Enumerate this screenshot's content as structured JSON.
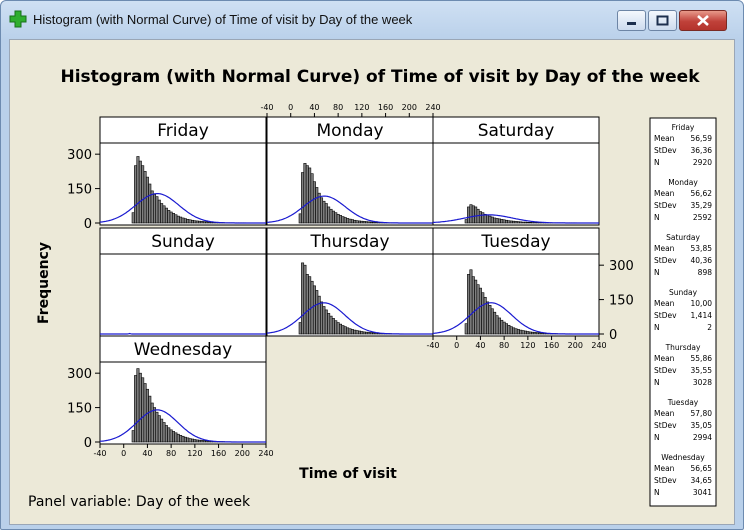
{
  "window": {
    "title": "Histogram (with Normal Curve) of Time of visit by Day of the week",
    "icons": [
      "plus-icon",
      "minimize-icon",
      "maximize-icon",
      "close-icon"
    ]
  },
  "chart_data": {
    "type": "histogram",
    "title": "Histogram (with Normal Curve) of Time of visit by Day of the week",
    "xlabel": "Time of visit",
    "ylabel": "Frequency",
    "panel_variable_label": "Panel variable: Day of the week",
    "x_ticks": [
      -40,
      0,
      40,
      80,
      120,
      160,
      200,
      240
    ],
    "y_ticks": [
      0,
      150,
      300
    ],
    "xlim": [
      -40,
      240
    ],
    "ylim": [
      0,
      340
    ],
    "bin_start": 14,
    "bin_width": 4,
    "panels": [
      {
        "name": "Friday",
        "mean": 56.59,
        "stdev": 36.36,
        "n": 2920,
        "stats_text": {
          "mean": "56,59",
          "stdev": "36,36",
          "n": "2920"
        },
        "counts": [
          45,
          250,
          290,
          270,
          250,
          225,
          200,
          170,
          140,
          125,
          115,
          100,
          85,
          75,
          65,
          55,
          48,
          42,
          36,
          30,
          26,
          22,
          19,
          16,
          14,
          12,
          10,
          9,
          8,
          7,
          6,
          5,
          4,
          4,
          3,
          3,
          2,
          2,
          2,
          1,
          1,
          1,
          1,
          1,
          1,
          1,
          1,
          1
        ]
      },
      {
        "name": "Monday",
        "mean": 56.62,
        "stdev": 35.29,
        "n": 2592,
        "stats_text": {
          "mean": "56,62",
          "stdev": "35,29",
          "n": "2592"
        },
        "counts": [
          40,
          220,
          260,
          250,
          240,
          215,
          180,
          155,
          130,
          110,
          95,
          85,
          70,
          60,
          52,
          45,
          38,
          33,
          28,
          24,
          20,
          17,
          15,
          12,
          10,
          9,
          8,
          7,
          6,
          5,
          4,
          4,
          3,
          3,
          2,
          2,
          2,
          1,
          1,
          1,
          1,
          1
        ]
      },
      {
        "name": "Saturday",
        "mean": 53.85,
        "stdev": 40.36,
        "n": 898,
        "stats_text": {
          "mean": "53,85",
          "stdev": "40,36",
          "n": "898"
        },
        "counts": [
          15,
          70,
          80,
          75,
          70,
          60,
          50,
          45,
          38,
          34,
          30,
          26,
          22,
          20,
          18,
          16,
          14,
          12,
          10,
          9,
          8,
          7,
          6,
          5,
          4,
          4,
          3,
          3,
          2,
          2,
          2,
          2,
          1,
          1,
          1,
          1,
          1,
          1,
          1,
          1,
          1,
          1,
          1,
          1,
          1,
          1,
          1
        ]
      },
      {
        "name": "Sunday",
        "mean": 10.0,
        "stdev": 1.414,
        "n": 2,
        "stats_text": {
          "mean": "10,00",
          "stdev": "1,414",
          "n": "2"
        },
        "counts": []
      },
      {
        "name": "Thursday",
        "mean": 55.86,
        "stdev": 35.55,
        "n": 3028,
        "stats_text": {
          "mean": "55,86",
          "stdev": "35,55",
          "n": "3028"
        },
        "counts": [
          50,
          310,
          300,
          260,
          250,
          230,
          210,
          190,
          165,
          140,
          120,
          105,
          90,
          78,
          68,
          58,
          50,
          43,
          37,
          32,
          27,
          23,
          20,
          17,
          15,
          13,
          11,
          9,
          8,
          7,
          6,
          5,
          5,
          4,
          3,
          3,
          2,
          2,
          2,
          1,
          1,
          1,
          1,
          1
        ]
      },
      {
        "name": "Tuesday",
        "mean": 57.8,
        "stdev": 35.05,
        "n": 2994,
        "stats_text": {
          "mean": "57,80",
          "stdev": "35,05",
          "n": "2994"
        },
        "counts": [
          45,
          260,
          280,
          250,
          235,
          215,
          200,
          180,
          160,
          140,
          125,
          110,
          95,
          80,
          70,
          60,
          52,
          45,
          38,
          32,
          27,
          23,
          20,
          17,
          15,
          13,
          11,
          9,
          8,
          7,
          6,
          5,
          4,
          4,
          3,
          3,
          2,
          2,
          2,
          1,
          1,
          1,
          1,
          1,
          1
        ]
      },
      {
        "name": "Wednesday",
        "mean": 56.65,
        "stdev": 34.65,
        "n": 3041,
        "stats_text": {
          "mean": "56,65",
          "stdev": "34,65",
          "n": "3041"
        },
        "counts": [
          50,
          290,
          320,
          300,
          280,
          255,
          230,
          200,
          170,
          150,
          130,
          115,
          100,
          85,
          72,
          62,
          53,
          46,
          40,
          34,
          29,
          25,
          21,
          18,
          15,
          13,
          11,
          9,
          8,
          7,
          6,
          5,
          4,
          4,
          3,
          3,
          2,
          2,
          2,
          1,
          1,
          1,
          1,
          1
        ]
      }
    ],
    "legend_labels": {
      "mean": "Mean",
      "stdev": "StDev",
      "n": "N"
    }
  }
}
